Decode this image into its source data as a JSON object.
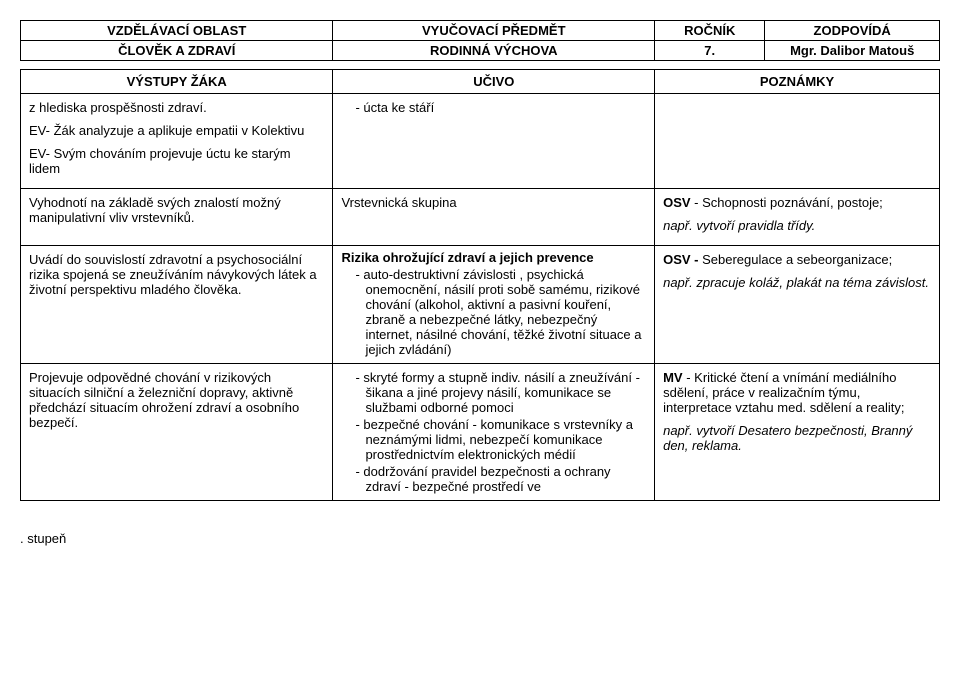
{
  "header": {
    "row1": {
      "c1": "VZDĚLÁVACÍ OBLAST",
      "c2": "VYUČOVACÍ PŘEDMĚT",
      "c3": "ROČNÍK",
      "c4": "ZODPOVÍDÁ"
    },
    "row2": {
      "c1": "ČLOVĚK A ZDRAVÍ",
      "c2": "RODINNÁ VÝCHOVA",
      "c3": "7.",
      "c4": "Mgr. Dalibor Matouš"
    }
  },
  "subhead": {
    "c1": "VÝSTUPY ŽÁKA",
    "c2": "UČIVO",
    "c3": "POZNÁMKY"
  },
  "rows": [
    {
      "left_paras": [
        "z hlediska prospěšnosti zdraví.",
        "EV- Žák analyzuje a aplikuje empatii v Kolektivu",
        "EV- Svým chováním projevuje úctu ke starým lidem"
      ],
      "mid_items": [
        "úcta ke stáří"
      ],
      "right_html": ""
    },
    {
      "left_paras": [
        "Vyhodnotí na základě svých znalostí možný manipulativní vliv vrstevníků."
      ],
      "mid_plain": "Vrstevnická skupina",
      "right_osv_label": "OSV",
      "right_osv_text": " - Schopnosti poznávání, postoje;",
      "right_italic": "např. vytvoří pravidla třídy."
    },
    {
      "left_paras": [
        "Uvádí do souvislostí zdravotní a psychosociální rizika spojená se zneužíváním návykových látek a životní perspektivu mladého člověka."
      ],
      "mid_bold_heading": "Rizika ohrožující zdraví a jejich prevence",
      "mid_items": [
        "auto-destruktivní závislosti , psychická onemocnění, násilí proti sobě samému, rizikové chování (alkohol, aktivní a pasivní kouření, zbraně a nebezpečné látky, nebezpečný internet, násilné chování, těžké životní situace a jejich zvládání)"
      ],
      "right_osv_label": "OSV -",
      "right_osv_text": " Seberegulace a sebeorganizace;",
      "right_italic": "např. zpracuje koláž, plakát na téma závislost."
    },
    {
      "left_paras": [
        "Projevuje odpovědné chování v rizikových situacích silniční a železniční dopravy, aktivně předchází situacím ohrožení zdraví a osobního bezpečí."
      ],
      "mid_items": [
        "skryté formy a stupně indiv. násilí a zneužívání - šikana a jiné projevy násilí, komunikace se službami odborné pomoci",
        "bezpečné chování - komunikace s vrstevníky a neznámými lidmi, nebezpečí komunikace prostřednictvím elektronických médií",
        "dodržování pravidel bezpečnosti a ochrany zdraví - bezpečné prostředí ve"
      ],
      "right_mv_label": "MV",
      "right_mv_text": " - Kritické čtení a vnímání mediálního sdělení,  práce v realizačním týmu, interpretace vztahu med. sdělení a reality;",
      "right_italic": "např. vytvoří Desatero bezpečnosti, Branný den, reklama."
    }
  ],
  "footer": ". stupeň"
}
